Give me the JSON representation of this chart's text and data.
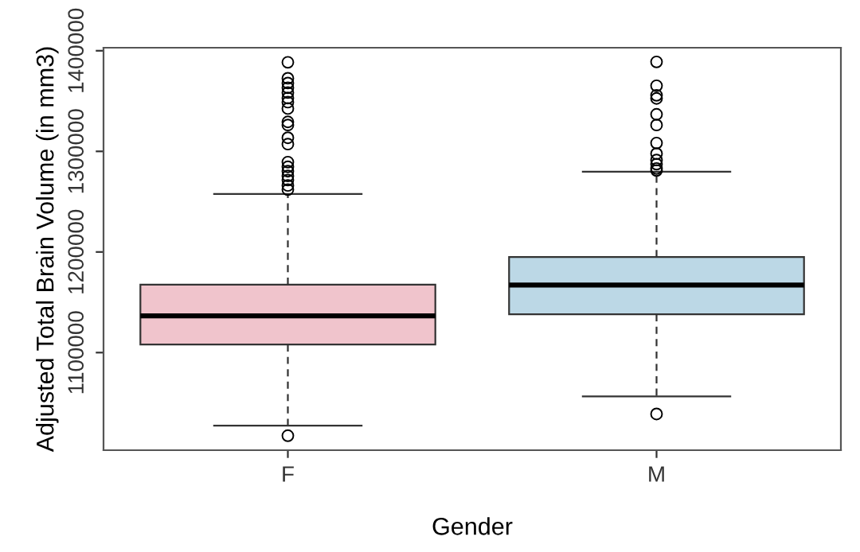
{
  "chart_data": {
    "type": "box",
    "xlabel": "Gender",
    "ylabel": "Adjusted Total Brain Volume (in mm3)",
    "categories": [
      "F",
      "M"
    ],
    "colors": [
      "#f0c4cc",
      "#bcd8e6"
    ],
    "boxes": [
      {
        "low": 1027400,
        "q1": 1108000,
        "median": 1136500,
        "q3": 1167600,
        "high": 1257700,
        "outliers": [
          1017400,
          1388500,
          1372600,
          1367900,
          1363200,
          1358400,
          1353000,
          1348900,
          1342600,
          1329300,
          1326200,
          1313500,
          1307200,
          1289300,
          1284600,
          1280300,
          1275600,
          1271500,
          1266100,
          1262000
        ]
      },
      {
        "low": 1056400,
        "q1": 1138000,
        "median": 1167100,
        "q3": 1195000,
        "high": 1279800,
        "outliers": [
          1039000,
          1388900,
          1365200,
          1355700,
          1352600,
          1336800,
          1326200,
          1308300,
          1297700,
          1291400,
          1287300,
          1283000,
          1281000
        ]
      }
    ],
    "ylim": [
      1003000,
      1403000
    ],
    "yticks": [
      1100000,
      1200000,
      1300000,
      1400000
    ],
    "grid": false,
    "legend": false
  }
}
